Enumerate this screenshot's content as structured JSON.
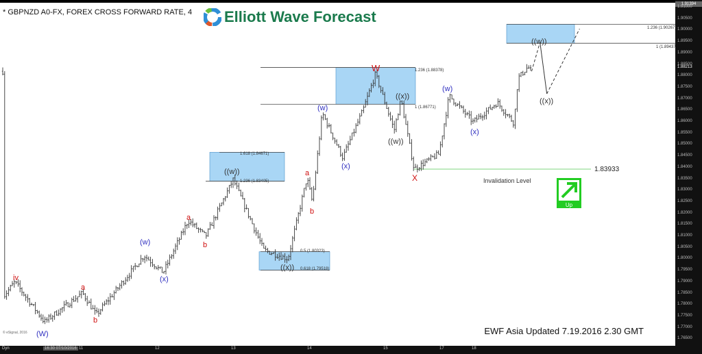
{
  "header": {
    "title": "* GBPNZD A0-FX, FOREX CROSS FORWARD RATE, 4",
    "brand": "Elliott Wave Forecast"
  },
  "footer": {
    "update_text": "EWF Asia Updated 7.19.2016 2.30 GMT",
    "copyright": "© eSignal, 2016",
    "dyn_label": "Dyn",
    "time_start": "16:30 07/10/2016"
  },
  "invalidation": {
    "label": "Invalidation Level",
    "value": "1.83933",
    "price": 1.83933,
    "color": "#7fd67f"
  },
  "up_badge": {
    "label": "Up",
    "color": "#22cc22",
    "icon": "arrow-up-right-icon"
  },
  "colors": {
    "bars": "#333333",
    "box": "#a9d6f5",
    "wave_red": "#d01010",
    "wave_blue": "#3030c0",
    "wave_dark": "#333333",
    "brand": "#1a7a4c"
  },
  "chart_data": {
    "type": "ohlc",
    "ylim": [
      1.765,
      1.91394
    ],
    "y_ticks": [
      "1.91000",
      "1.90500",
      "1.90000",
      "1.89500",
      "1.89000",
      "1.88500",
      "1.88000",
      "1.87500",
      "1.87000",
      "1.86500",
      "1.86000",
      "1.85500",
      "1.85000",
      "1.84500",
      "1.84000",
      "1.83500",
      "1.83000",
      "1.82500",
      "1.82000",
      "1.81500",
      "1.81000",
      "1.80500",
      "1.80000",
      "1.79500",
      "1.79000",
      "1.78500",
      "1.78000",
      "1.77500",
      "1.77000",
      "1.76500"
    ],
    "y_high_label": "1.91394",
    "last_price": "1.88213",
    "x_ticks": [
      "11",
      "12",
      "13",
      "14",
      "15",
      "17",
      "18"
    ],
    "price_path": [
      {
        "day": 10.0,
        "price": 1.784
      },
      {
        "day": 10.14,
        "price": 1.79
      },
      {
        "day": 10.53,
        "price": 1.7726
      },
      {
        "day": 11.03,
        "price": 1.7852
      },
      {
        "day": 11.21,
        "price": 1.7756
      },
      {
        "day": 11.84,
        "price": 1.8016
      },
      {
        "day": 12.09,
        "price": 1.7941
      },
      {
        "day": 12.42,
        "price": 1.8169
      },
      {
        "day": 12.65,
        "price": 1.81
      },
      {
        "day": 13.01,
        "price": 1.8348
      },
      {
        "day": 13.41,
        "price": 1.804
      },
      {
        "day": 13.73,
        "price": 1.8001
      },
      {
        "day": 13.98,
        "price": 1.8355
      },
      {
        "day": 14.05,
        "price": 1.825
      },
      {
        "day": 14.18,
        "price": 1.8639
      },
      {
        "day": 14.45,
        "price": 1.8444
      },
      {
        "day": 14.72,
        "price": 1.8654
      },
      {
        "day": 14.88,
        "price": 1.881
      },
      {
        "day": 15.36,
        "price": 1.8564
      },
      {
        "day": 15.6,
        "price": 1.8699
      },
      {
        "day": 16.06,
        "price": 1.83933
      },
      {
        "day": 16.93,
        "price": 1.846
      },
      {
        "day": 17.26,
        "price": 1.8714
      },
      {
        "day": 18.0,
        "price": 1.86
      },
      {
        "day": 18.32,
        "price": 1.8684
      },
      {
        "day": 18.54,
        "price": 1.8594
      },
      {
        "day": 18.59,
        "price": 1.879
      },
      {
        "day": 18.72,
        "price": 1.884
      },
      {
        "day": 18.77,
        "price": 1.88213
      }
    ],
    "projection": [
      {
        "day": 18.77,
        "price": 1.88213,
        "style": "dashed"
      },
      {
        "day": 18.88,
        "price": 1.8948,
        "style": "solid"
      },
      {
        "day": 18.97,
        "price": 1.8723,
        "style": "dashed"
      },
      {
        "day": 19.4,
        "price": 1.9007,
        "style": "end"
      }
    ],
    "fib_zones": [
      {
        "top": 1.88378,
        "bottom": 1.86771,
        "top_label": "1.236 (1.88378)",
        "bottom_label": "1 (1.86771)"
      },
      {
        "top": 1.84671,
        "bottom": 1.83405,
        "top_label": "1.618 (1.84671)",
        "bottom_label": "1.236 (1.83405)"
      },
      {
        "top": 1.80323,
        "bottom": 1.79518,
        "top_label": "0.5 (1.80323)",
        "bottom_label": "0.618 (1.79518)"
      },
      {
        "top": 1.90267,
        "bottom": 1.89437,
        "top_label": "1.236 (1.90267)",
        "bottom_label": "1 (1.89437)"
      }
    ],
    "wave_labels": [
      "iv",
      "(W)",
      "a",
      "b",
      "(w)",
      "(x)",
      "a",
      "b",
      "((w))",
      "((x))",
      "a",
      "b",
      "(w)",
      "(x)",
      "W",
      "((w))",
      "((x))",
      "X",
      "(w)",
      "(x)",
      "((w))",
      "((x))"
    ]
  }
}
